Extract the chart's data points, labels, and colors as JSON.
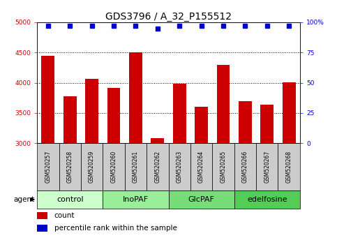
{
  "title": "GDS3796 / A_32_P155512",
  "samples": [
    "GSM520257",
    "GSM520258",
    "GSM520259",
    "GSM520260",
    "GSM520261",
    "GSM520262",
    "GSM520263",
    "GSM520264",
    "GSM520265",
    "GSM520266",
    "GSM520267",
    "GSM520268"
  ],
  "counts": [
    4440,
    3780,
    4060,
    3920,
    4500,
    3080,
    3980,
    3600,
    4300,
    3700,
    3640,
    4010
  ],
  "percentile_ranks": [
    97,
    97,
    97,
    97,
    97,
    95,
    97,
    97,
    97,
    97,
    97,
    97
  ],
  "groups": [
    {
      "label": "control",
      "start": 0,
      "end": 3,
      "color": "#ccffcc"
    },
    {
      "label": "InoPAF",
      "start": 3,
      "end": 6,
      "color": "#99ee99"
    },
    {
      "label": "GlcPAF",
      "start": 6,
      "end": 9,
      "color": "#77dd77"
    },
    {
      "label": "edelfosine",
      "start": 9,
      "end": 12,
      "color": "#55cc55"
    }
  ],
  "ylim_left": [
    3000,
    5000
  ],
  "ylim_right": [
    0,
    100
  ],
  "bar_color": "#cc0000",
  "scatter_color": "#0000cc",
  "yticks_left": [
    3000,
    3500,
    4000,
    4500,
    5000
  ],
  "yticks_right": [
    0,
    25,
    50,
    75,
    100
  ],
  "ytick_labels_left": [
    "3000",
    "3500",
    "4000",
    "4500",
    "5000"
  ],
  "ytick_labels_right": [
    "0",
    "25",
    "50",
    "75",
    "100%"
  ],
  "agent_label": "agent",
  "legend_count_label": "count",
  "legend_pct_label": "percentile rank within the sample",
  "bg_color": "#ffffff",
  "plot_bg_color": "#ffffff",
  "tick_area_bg": "#cccccc",
  "title_fontsize": 10,
  "tick_fontsize": 6.5,
  "label_fontsize": 7.5,
  "group_label_fontsize": 8,
  "sample_fontsize": 5.5
}
